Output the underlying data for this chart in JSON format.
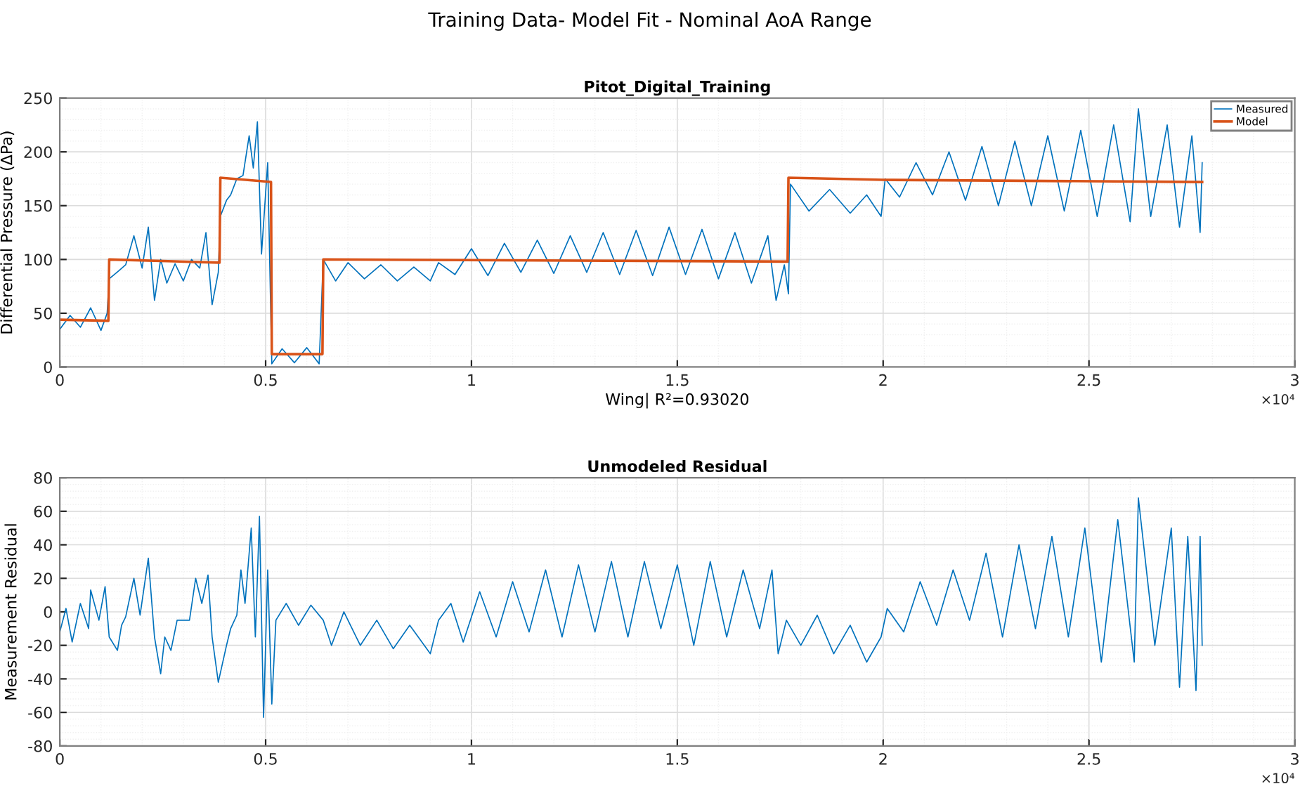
{
  "chart_data": [
    {
      "type": "line",
      "title": "Pitot_Digital_Training",
      "xlabel": "Wing| R²=0.93020",
      "ylabel": "Differential Pressure (ΔPa)",
      "annotations": [
        "Training Data- Model Fit - Nominal AoA Range",
        "×10⁴"
      ],
      "xlim": [
        0,
        3
      ],
      "xticks": [
        0,
        0.5,
        1,
        1.5,
        2,
        2.5,
        3
      ],
      "ylim": [
        0,
        250
      ],
      "yticks": [
        0,
        50,
        100,
        150,
        200,
        250
      ],
      "grid": true,
      "legend": "top right",
      "series": [
        {
          "name": "Measured",
          "color": "#0072bd",
          "x": [
            0,
            0.025,
            0.05,
            0.075,
            0.1,
            0.115,
            0.12,
            0.145,
            0.16,
            0.18,
            0.2,
            0.215,
            0.23,
            0.245,
            0.26,
            0.28,
            0.3,
            0.32,
            0.34,
            0.355,
            0.37,
            0.385,
            0.39,
            0.405,
            0.415,
            0.43,
            0.445,
            0.46,
            0.47,
            0.48,
            0.49,
            0.505,
            0.515,
            0.54,
            0.57,
            0.6,
            0.63,
            0.64,
            0.67,
            0.7,
            0.74,
            0.78,
            0.82,
            0.86,
            0.9,
            0.92,
            0.96,
            1.0,
            1.04,
            1.08,
            1.12,
            1.16,
            1.2,
            1.24,
            1.28,
            1.32,
            1.36,
            1.4,
            1.44,
            1.48,
            1.52,
            1.56,
            1.6,
            1.64,
            1.68,
            1.72,
            1.74,
            1.76,
            1.77,
            1.775,
            1.82,
            1.87,
            1.92,
            1.96,
            1.995,
            2.005,
            2.04,
            2.08,
            2.12,
            2.16,
            2.2,
            2.24,
            2.28,
            2.32,
            2.36,
            2.4,
            2.44,
            2.48,
            2.52,
            2.56,
            2.6,
            2.62,
            2.65,
            2.69,
            2.72,
            2.75,
            2.77,
            2.775
          ],
          "values": [
            35,
            48,
            37,
            55,
            34,
            50,
            82,
            90,
            95,
            122,
            92,
            130,
            62,
            100,
            78,
            96,
            80,
            100,
            92,
            125,
            58,
            88,
            140,
            155,
            160,
            175,
            178,
            215,
            185,
            228,
            105,
            190,
            3,
            17,
            4,
            18,
            3,
            100,
            80,
            97,
            82,
            95,
            80,
            93,
            80,
            97,
            86,
            110,
            85,
            115,
            88,
            118,
            87,
            122,
            88,
            125,
            86,
            127,
            85,
            130,
            86,
            128,
            82,
            125,
            78,
            122,
            62,
            95,
            68,
            170,
            145,
            165,
            143,
            160,
            140,
            175,
            158,
            190,
            160,
            200,
            155,
            205,
            150,
            210,
            150,
            215,
            145,
            220,
            140,
            225,
            135,
            240,
            140,
            225,
            130,
            215,
            125,
            190
          ]
        },
        {
          "name": "Model",
          "color": "#d95319",
          "x": [
            0,
            0.118,
            0.12,
            0.388,
            0.39,
            0.513,
            0.515,
            0.638,
            0.64,
            1.768,
            1.77,
            2.0,
            2.775
          ],
          "values": [
            44,
            43,
            100,
            97,
            176,
            172,
            12,
            12,
            100,
            98,
            176,
            174,
            172
          ]
        }
      ]
    },
    {
      "type": "line",
      "title": "Unmodeled Residual",
      "ylabel": "Measurement Residual",
      "annotations": [
        "×10⁴"
      ],
      "xlim": [
        0,
        3
      ],
      "xticks": [
        0,
        0.5,
        1,
        1.5,
        2,
        2.5,
        3
      ],
      "ylim": [
        -80,
        80
      ],
      "yticks": [
        -80,
        -60,
        -40,
        -20,
        0,
        20,
        40,
        60,
        80
      ],
      "grid": true,
      "series": [
        {
          "color": "#0072bd",
          "x": [
            0,
            0.015,
            0.03,
            0.05,
            0.07,
            0.075,
            0.095,
            0.11,
            0.12,
            0.14,
            0.15,
            0.16,
            0.18,
            0.195,
            0.215,
            0.23,
            0.245,
            0.255,
            0.27,
            0.285,
            0.315,
            0.33,
            0.345,
            0.36,
            0.37,
            0.385,
            0.405,
            0.415,
            0.43,
            0.44,
            0.45,
            0.465,
            0.475,
            0.485,
            0.495,
            0.505,
            0.515,
            0.525,
            0.55,
            0.58,
            0.61,
            0.64,
            0.66,
            0.69,
            0.73,
            0.77,
            0.81,
            0.85,
            0.9,
            0.92,
            0.95,
            0.98,
            1.02,
            1.06,
            1.1,
            1.14,
            1.18,
            1.22,
            1.26,
            1.3,
            1.34,
            1.38,
            1.42,
            1.46,
            1.5,
            1.54,
            1.58,
            1.62,
            1.66,
            1.7,
            1.73,
            1.745,
            1.765,
            1.8,
            1.84,
            1.88,
            1.92,
            1.96,
            1.995,
            2.01,
            2.05,
            2.09,
            2.13,
            2.17,
            2.21,
            2.25,
            2.29,
            2.33,
            2.37,
            2.41,
            2.45,
            2.49,
            2.53,
            2.57,
            2.61,
            2.62,
            2.66,
            2.7,
            2.72,
            2.74,
            2.76,
            2.77,
            2.775
          ],
          "values": [
            -12,
            2,
            -18,
            5,
            -10,
            13,
            -5,
            15,
            -15,
            -23,
            -8,
            -3,
            20,
            -2,
            32,
            -15,
            -37,
            -15,
            -23,
            -5,
            -5,
            20,
            5,
            22,
            -15,
            -42,
            -20,
            -10,
            -2,
            25,
            5,
            50,
            -15,
            57,
            -63,
            25,
            -55,
            -5,
            5,
            -8,
            4,
            -5,
            -20,
            0,
            -20,
            -5,
            -22,
            -8,
            -25,
            -5,
            5,
            -18,
            12,
            -15,
            18,
            -12,
            25,
            -15,
            28,
            -12,
            30,
            -15,
            30,
            -10,
            28,
            -20,
            30,
            -15,
            25,
            -10,
            25,
            -25,
            -5,
            -20,
            -2,
            -25,
            -8,
            -30,
            -15,
            2,
            -12,
            18,
            -8,
            25,
            -5,
            35,
            -15,
            40,
            -10,
            45,
            -15,
            50,
            -30,
            55,
            -30,
            68,
            -20,
            50,
            -45,
            45,
            -47,
            45,
            -20
          ]
        }
      ]
    }
  ]
}
